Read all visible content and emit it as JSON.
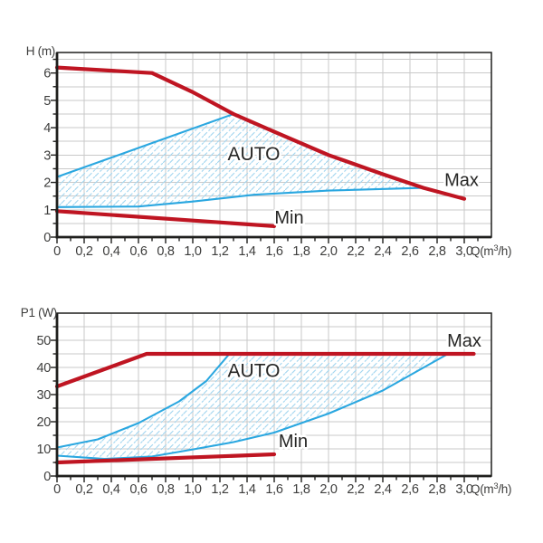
{
  "colors": {
    "red": "#bf1522",
    "blue": "#2aa7e0",
    "hatch": "#a5d7f0",
    "grid": "#c9c9c9",
    "axis": "#1f1f1d",
    "tick_text": "#3d3d3c",
    "annotation_text": "#262625",
    "background": "#ffffff"
  },
  "chart_data": [
    {
      "type": "line",
      "name": "pump-head-curves",
      "y_axis_title": "H (m)",
      "x_axis_title": "Q(m³/h)",
      "x_axis_title_parts": [
        "Q(m",
        "3",
        "/h)"
      ],
      "xlim": [
        0,
        3.2
      ],
      "ylim": [
        0,
        6.75
      ],
      "x_major": [
        0,
        3.0,
        0.2
      ],
      "x_minor": [
        0.1,
        3.1,
        0.2
      ],
      "y_major": [
        0,
        6,
        1
      ],
      "y_minor": [
        0.5,
        6.5,
        1
      ],
      "x_grid": [
        0.2,
        3.0,
        0.2
      ],
      "y_grid": [
        0.5,
        6.5,
        0.5
      ],
      "x_tick_labels": [
        "0",
        "0,2",
        "0,4",
        "0,6",
        "0,8",
        "1,0",
        "1,2",
        "1,4",
        "1,6",
        "1,8",
        "2,0",
        "2,2",
        "2,4",
        "2,6",
        "2,8",
        "3,0"
      ],
      "y_tick_labels": [
        "0",
        "1",
        "2",
        "3",
        "4",
        "5",
        "6"
      ],
      "series": [
        {
          "name": "Max",
          "color_key": "red",
          "stroke_width": 4.2,
          "points": [
            [
              0,
              6.2
            ],
            [
              0.7,
              6.0
            ],
            [
              1.0,
              5.3
            ],
            [
              1.3,
              4.5
            ],
            [
              1.6,
              3.85
            ],
            [
              2.0,
              3.0
            ],
            [
              2.4,
              2.3
            ],
            [
              2.7,
              1.8
            ],
            [
              3.0,
              1.4
            ]
          ]
        },
        {
          "name": "Min",
          "color_key": "red",
          "stroke_width": 4.2,
          "points": [
            [
              0,
              0.95
            ],
            [
              1.6,
              0.4
            ]
          ]
        },
        {
          "name": "auto-upper",
          "color_key": "blue",
          "stroke_width": 2.1,
          "points": [
            [
              0,
              2.2
            ],
            [
              0.65,
              3.35
            ],
            [
              1.3,
              4.5
            ]
          ]
        },
        {
          "name": "auto-lower",
          "color_key": "blue",
          "stroke_width": 2.1,
          "points": [
            [
              0,
              1.1
            ],
            [
              0.6,
              1.12
            ],
            [
              1.0,
              1.3
            ],
            [
              1.45,
              1.55
            ],
            [
              2.0,
              1.7
            ],
            [
              2.7,
              1.8
            ]
          ]
        }
      ],
      "auto_region": [
        [
          0,
          2.2
        ],
        [
          0.65,
          3.35
        ],
        [
          1.3,
          4.5
        ],
        [
          1.6,
          3.85
        ],
        [
          2.0,
          3.0
        ],
        [
          2.4,
          2.3
        ],
        [
          2.7,
          1.8
        ],
        [
          2.0,
          1.7
        ],
        [
          1.45,
          1.55
        ],
        [
          1.0,
          1.3
        ],
        [
          0.6,
          1.12
        ],
        [
          0,
          1.1
        ]
      ],
      "annotations": [
        {
          "text": "AUTO",
          "x": 1.45,
          "y": 3.05,
          "font_size": 21
        },
        {
          "text": "Max",
          "x": 2.98,
          "y": 2.1,
          "font_size": 20
        },
        {
          "text": "Min",
          "x": 1.71,
          "y": 0.73,
          "font_size": 20
        }
      ]
    },
    {
      "type": "line",
      "name": "pump-power-curves",
      "y_axis_title": "P1 (W)",
      "x_axis_title": "Q(m³/h)",
      "x_axis_title_parts": [
        "Q(m",
        "3",
        "/h)"
      ],
      "xlim": [
        0,
        3.2
      ],
      "ylim": [
        0,
        60
      ],
      "x_major": [
        0,
        3.0,
        0.2
      ],
      "x_minor": [
        0.1,
        3.1,
        0.2
      ],
      "y_major": [
        0,
        50,
        10
      ],
      "y_minor": [
        5,
        55,
        10
      ],
      "x_grid": [
        0.2,
        3.0,
        0.2
      ],
      "y_grid": [
        5,
        55,
        5
      ],
      "x_tick_labels": [
        "0",
        "0,2",
        "0,4",
        "0,6",
        "0,8",
        "1,0",
        "1,2",
        "1,4",
        "1,6",
        "1,8",
        "2,0",
        "2,2",
        "2,4",
        "2,6",
        "2,8",
        "3,0"
      ],
      "y_tick_labels": [
        "0",
        "10",
        "20",
        "30",
        "40",
        "50"
      ],
      "series": [
        {
          "name": "Max",
          "color_key": "red",
          "stroke_width": 4.2,
          "points": [
            [
              0,
              33
            ],
            [
              0.66,
              45
            ],
            [
              3.07,
              45
            ]
          ]
        },
        {
          "name": "Min",
          "color_key": "red",
          "stroke_width": 4.2,
          "points": [
            [
              0,
              5
            ],
            [
              1.6,
              8
            ]
          ]
        },
        {
          "name": "auto-upper",
          "color_key": "blue",
          "stroke_width": 2.1,
          "points": [
            [
              0,
              10.5
            ],
            [
              0.3,
              13.5
            ],
            [
              0.6,
              19.5
            ],
            [
              0.9,
              27.5
            ],
            [
              1.1,
              35
            ],
            [
              1.27,
              45
            ]
          ]
        },
        {
          "name": "auto-lower",
          "color_key": "blue",
          "stroke_width": 2.1,
          "points": [
            [
              0,
              7.5
            ],
            [
              0.35,
              6.3
            ],
            [
              0.7,
              7.2
            ],
            [
              1.0,
              9.8
            ],
            [
              1.3,
              12.5
            ],
            [
              1.6,
              16
            ],
            [
              2.0,
              23
            ],
            [
              2.4,
              31.5
            ],
            [
              2.88,
              45
            ]
          ]
        }
      ],
      "auto_region": [
        [
          0,
          10.5
        ],
        [
          0.3,
          13.5
        ],
        [
          0.6,
          19.5
        ],
        [
          0.9,
          27.5
        ],
        [
          1.1,
          35
        ],
        [
          1.27,
          45
        ],
        [
          2.88,
          45
        ],
        [
          2.4,
          31.5
        ],
        [
          2.0,
          23
        ],
        [
          1.6,
          16
        ],
        [
          1.3,
          12.5
        ],
        [
          1.0,
          9.8
        ],
        [
          0.7,
          7.2
        ],
        [
          0.35,
          6.3
        ],
        [
          0,
          7.5
        ]
      ],
      "annotations": [
        {
          "text": "AUTO",
          "x": 1.45,
          "y": 39,
          "font_size": 21
        },
        {
          "text": "Max",
          "x": 3.0,
          "y": 50,
          "font_size": 20
        },
        {
          "text": "Min",
          "x": 1.74,
          "y": 13,
          "font_size": 20
        }
      ]
    }
  ]
}
